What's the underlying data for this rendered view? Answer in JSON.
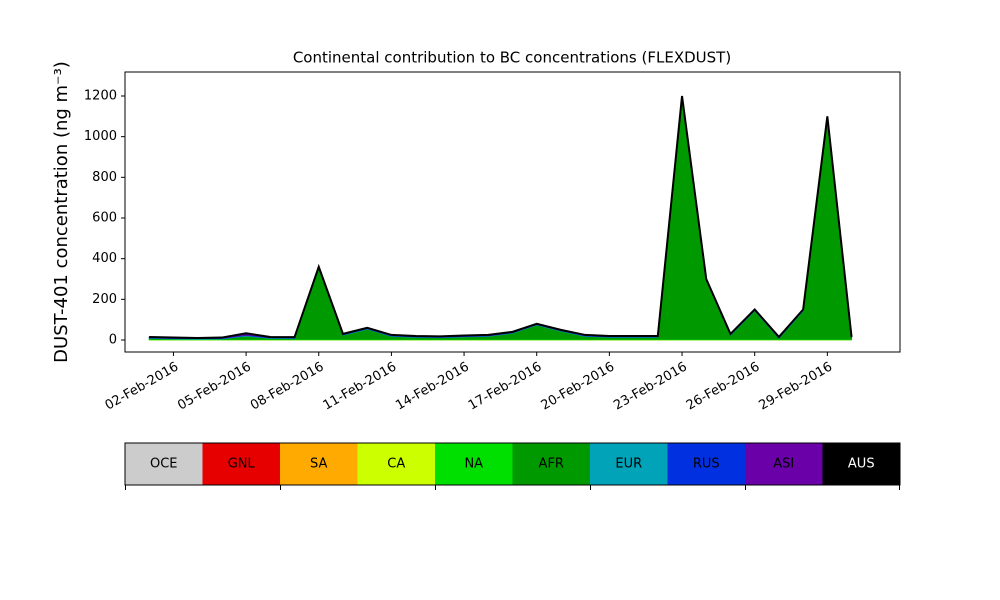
{
  "chart_data": {
    "type": "stacked_area",
    "title": "Continental contribution to BC concentrations (FLEXDUST)",
    "ylabel": "DUST-401 concentration (ng m⁻³)",
    "x": [
      "2016-02-01",
      "2016-02-02",
      "2016-02-03",
      "2016-02-04",
      "2016-02-05",
      "2016-02-06",
      "2016-02-07",
      "2016-02-08",
      "2016-02-09",
      "2016-02-10",
      "2016-02-11",
      "2016-02-12",
      "2016-02-13",
      "2016-02-14",
      "2016-02-15",
      "2016-02-16",
      "2016-02-17",
      "2016-02-18",
      "2016-02-19",
      "2016-02-20",
      "2016-02-21",
      "2016-02-22",
      "2016-02-23",
      "2016-02-24",
      "2016-02-25",
      "2016-02-26",
      "2016-02-27",
      "2016-02-28",
      "2016-02-29",
      "2016-03-01"
    ],
    "xlim": [
      "2016-01-31",
      "2016-03-03"
    ],
    "xticks": [
      {
        "value": "2016-02-02",
        "label": "02-Feb-2016"
      },
      {
        "value": "2016-02-05",
        "label": "05-Feb-2016"
      },
      {
        "value": "2016-02-08",
        "label": "08-Feb-2016"
      },
      {
        "value": "2016-02-11",
        "label": "11-Feb-2016"
      },
      {
        "value": "2016-02-14",
        "label": "14-Feb-2016"
      },
      {
        "value": "2016-02-17",
        "label": "17-Feb-2016"
      },
      {
        "value": "2016-02-20",
        "label": "20-Feb-2016"
      },
      {
        "value": "2016-02-23",
        "label": "23-Feb-2016"
      },
      {
        "value": "2016-02-26",
        "label": "26-Feb-2016"
      },
      {
        "value": "2016-02-29",
        "label": "29-Feb-2016"
      }
    ],
    "ylim": [
      -59,
      1318
    ],
    "yticks": [
      0,
      200,
      400,
      600,
      800,
      1000,
      1200
    ],
    "grid": false,
    "series": [
      {
        "name": "OCE",
        "color": "#cccccc",
        "values": [
          0,
          0,
          0,
          0,
          0,
          0,
          0,
          0,
          0,
          0,
          0,
          0,
          0,
          0,
          0,
          0,
          0,
          0,
          0,
          0,
          0,
          0,
          0,
          0,
          0,
          0,
          0,
          0,
          0,
          0
        ]
      },
      {
        "name": "GNL",
        "color": "#e60000",
        "values": [
          0,
          0,
          0,
          0,
          0,
          0,
          0,
          0,
          0,
          0,
          0,
          0,
          0,
          0,
          0,
          0,
          0,
          0,
          0,
          0,
          0,
          0,
          0,
          0,
          0,
          0,
          0,
          0,
          0,
          0
        ]
      },
      {
        "name": "SA",
        "color": "#ffaa00",
        "values": [
          0,
          0,
          0,
          0,
          0,
          0,
          0,
          0,
          0,
          0,
          0,
          0,
          0,
          0,
          0,
          0,
          0,
          0,
          0,
          0,
          0,
          0,
          0,
          0,
          0,
          0,
          0,
          0,
          0,
          0
        ]
      },
      {
        "name": "CA",
        "color": "#ccff00",
        "values": [
          1,
          1,
          1,
          1,
          1,
          1,
          1,
          1,
          1,
          1,
          1,
          1,
          1,
          1,
          1,
          1,
          1,
          1,
          1,
          1,
          1,
          1,
          1,
          1,
          1,
          1,
          1,
          1,
          1,
          1
        ]
      },
      {
        "name": "NA",
        "color": "#00e000",
        "values": [
          3,
          3,
          3,
          3,
          3,
          3,
          3,
          3,
          3,
          3,
          3,
          3,
          3,
          3,
          3,
          3,
          3,
          3,
          3,
          3,
          3,
          3,
          3,
          3,
          3,
          3,
          3,
          3,
          3,
          3
        ]
      },
      {
        "name": "AFR",
        "color": "#009a00",
        "values": [
          4,
          1,
          0,
          1,
          15,
          4,
          3,
          349,
          19,
          49,
          14,
          9,
          7,
          11,
          14,
          29,
          69,
          39,
          14,
          9,
          9,
          9,
          1189,
          289,
          19,
          139,
          4,
          139,
          1089,
          4
        ]
      },
      {
        "name": "EUR",
        "color": "#00a3b8",
        "values": [
          2,
          2,
          2,
          2,
          3,
          2,
          2,
          2,
          2,
          2,
          2,
          2,
          2,
          2,
          2,
          2,
          2,
          2,
          2,
          2,
          2,
          2,
          2,
          2,
          2,
          2,
          2,
          2,
          2,
          2
        ]
      },
      {
        "name": "RUS",
        "color": "#0030e0",
        "values": [
          2,
          2,
          2,
          2,
          3,
          2,
          2,
          2,
          2,
          2,
          2,
          2,
          2,
          2,
          2,
          2,
          2,
          2,
          2,
          2,
          2,
          2,
          2,
          2,
          2,
          2,
          2,
          2,
          2,
          2
        ]
      },
      {
        "name": "ASI",
        "color": "#6a00a8",
        "values": [
          3,
          3,
          2,
          3,
          8,
          3,
          3,
          3,
          3,
          3,
          3,
          3,
          3,
          3,
          3,
          3,
          3,
          3,
          3,
          3,
          3,
          3,
          3,
          3,
          3,
          3,
          3,
          3,
          3,
          3
        ]
      },
      {
        "name": "AUS",
        "color": "#000000",
        "values": [
          0,
          0,
          0,
          0,
          0,
          0,
          0,
          0,
          0,
          0,
          0,
          0,
          0,
          0,
          0,
          0,
          0,
          0,
          0,
          0,
          0,
          0,
          0,
          0,
          0,
          0,
          0,
          0,
          0,
          0
        ]
      }
    ]
  }
}
